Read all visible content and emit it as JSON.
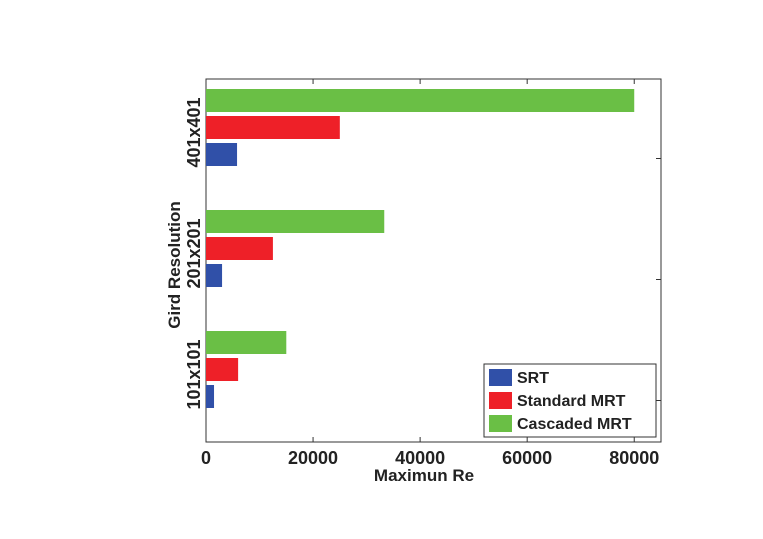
{
  "chart_data": {
    "type": "bar",
    "orientation": "horizontal",
    "title": "",
    "xlabel": "Maximun Re",
    "ylabel": "Gird Resolution",
    "categories": [
      "101x101",
      "201x201",
      "401x401"
    ],
    "series": [
      {
        "name": "SRT",
        "color": "#3050a8",
        "values": [
          1500,
          3000,
          5800
        ]
      },
      {
        "name": "Standard MRT",
        "color": "#ee2028",
        "values": [
          6000,
          12500,
          25000
        ]
      },
      {
        "name": "Cascaded MRT",
        "color": "#6abf45",
        "values": [
          15000,
          33300,
          80000
        ]
      }
    ],
    "xlim": [
      0,
      85000
    ],
    "xticks": [
      0,
      20000,
      40000,
      60000,
      80000
    ],
    "grid": false,
    "legend_position": "bottom-right"
  }
}
